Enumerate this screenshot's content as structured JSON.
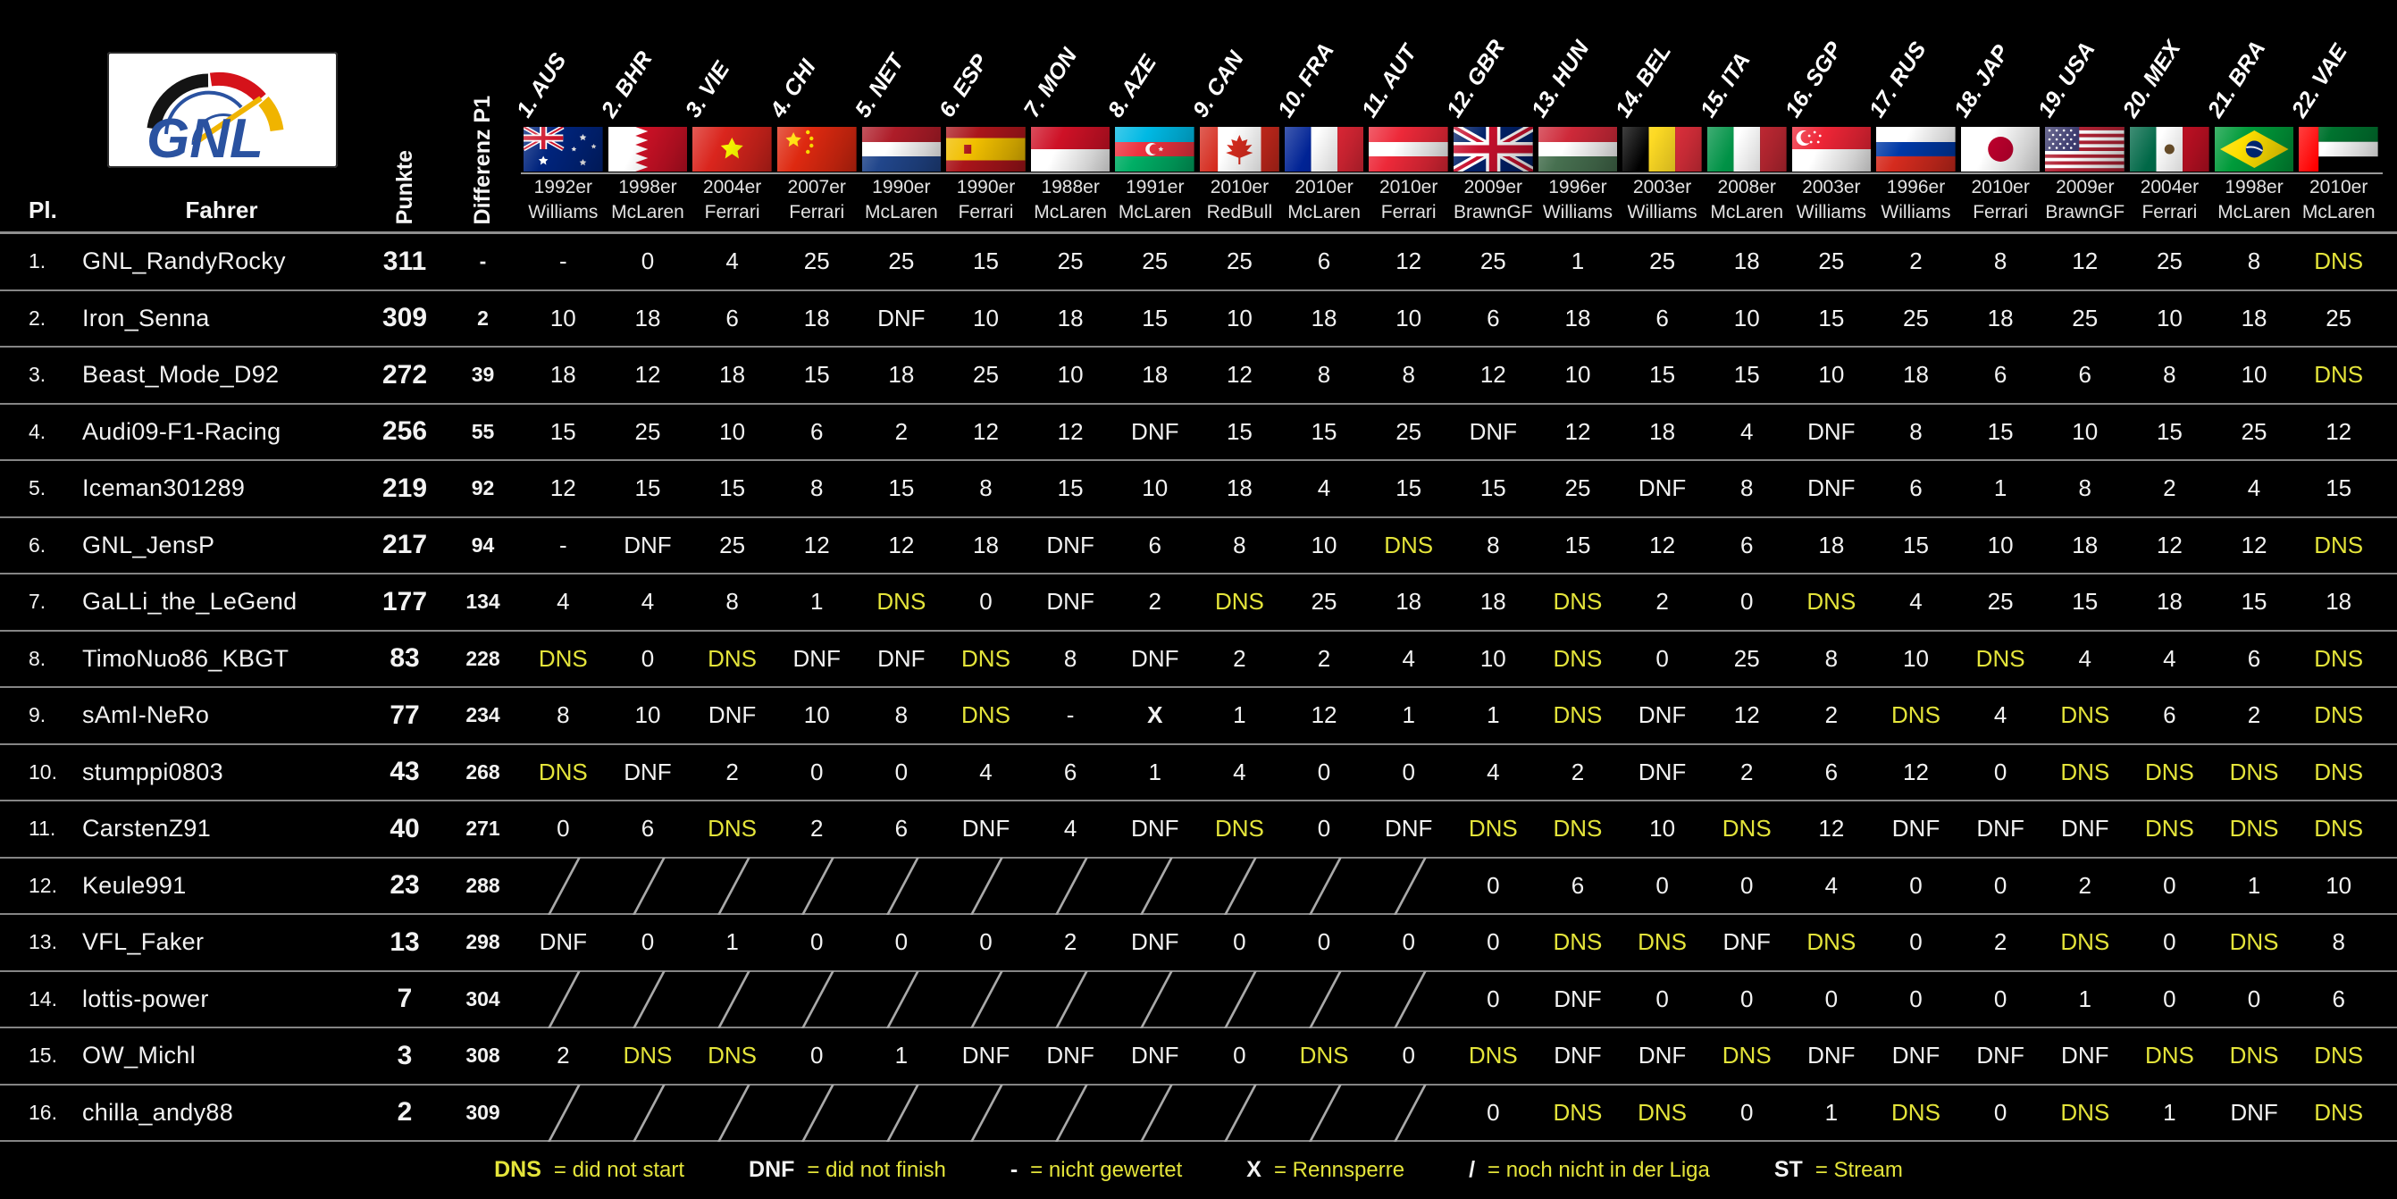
{
  "colors": {
    "background": "#000000",
    "text": "#f2f2f2",
    "accent_yellow": "#e4e43a",
    "separator": "#8f8f8f",
    "logo_blue": "#2a52a0"
  },
  "logo": {
    "text": "GNL"
  },
  "header": {
    "col_pl": "Pl.",
    "col_fahrer": "Fahrer",
    "col_punkte": "Punkte",
    "col_differenz": "Differenz P1"
  },
  "races": [
    {
      "label": "1. AUS",
      "flag": "australia",
      "car_year": "1992er",
      "car_team": "Williams"
    },
    {
      "label": "2. BHR",
      "flag": "bahrain",
      "car_year": "1998er",
      "car_team": "McLaren"
    },
    {
      "label": "3. VIE",
      "flag": "vietnam",
      "car_year": "2004er",
      "car_team": "Ferrari"
    },
    {
      "label": "4. CHI",
      "flag": "china",
      "car_year": "2007er",
      "car_team": "Ferrari"
    },
    {
      "label": "5. NET",
      "flag": "netherlands",
      "car_year": "1990er",
      "car_team": "McLaren"
    },
    {
      "label": "6. ESP",
      "flag": "spain",
      "car_year": "1990er",
      "car_team": "Ferrari"
    },
    {
      "label": "7. MON",
      "flag": "monaco",
      "car_year": "1988er",
      "car_team": "McLaren"
    },
    {
      "label": "8. AZE",
      "flag": "azerbaijan",
      "car_year": "1991er",
      "car_team": "McLaren"
    },
    {
      "label": "9. CAN",
      "flag": "canada",
      "car_year": "2010er",
      "car_team": "RedBull"
    },
    {
      "label": "10. FRA",
      "flag": "france",
      "car_year": "2010er",
      "car_team": "McLaren"
    },
    {
      "label": "11. AUT",
      "flag": "austria",
      "car_year": "2010er",
      "car_team": "Ferrari"
    },
    {
      "label": "12. GBR",
      "flag": "uk",
      "car_year": "2009er",
      "car_team": "BrawnGF"
    },
    {
      "label": "13. HUN",
      "flag": "hungary",
      "car_year": "1996er",
      "car_team": "Williams"
    },
    {
      "label": "14. BEL",
      "flag": "belgium",
      "car_year": "2003er",
      "car_team": "Williams"
    },
    {
      "label": "15. ITA",
      "flag": "italy",
      "car_year": "2008er",
      "car_team": "McLaren"
    },
    {
      "label": "16. SGP",
      "flag": "singapore",
      "car_year": "2003er",
      "car_team": "Williams"
    },
    {
      "label": "17. RUS",
      "flag": "russia",
      "car_year": "1996er",
      "car_team": "Williams"
    },
    {
      "label": "18. JAP",
      "flag": "japan",
      "car_year": "2010er",
      "car_team": "Ferrari"
    },
    {
      "label": "19. USA",
      "flag": "usa",
      "car_year": "2009er",
      "car_team": "BrawnGF"
    },
    {
      "label": "20. MEX",
      "flag": "mexico",
      "car_year": "2004er",
      "car_team": "Ferrari"
    },
    {
      "label": "21. BRA",
      "flag": "brazil",
      "car_year": "1998er",
      "car_team": "McLaren"
    },
    {
      "label": "22. VAE",
      "flag": "uae",
      "car_year": "2010er",
      "car_team": "McLaren"
    }
  ],
  "standings": {
    "rows": [
      {
        "pl": "1.",
        "fahrer": "GNL_RandyRocky",
        "punkte": "311",
        "differenz": "-",
        "results": [
          "-",
          "0",
          "4",
          "25",
          "25",
          "15",
          "25",
          "25",
          "25",
          "6",
          "12",
          "25",
          "1",
          "25",
          "18",
          "25",
          "2",
          "8",
          "12",
          "25",
          "8",
          "DNS"
        ]
      },
      {
        "pl": "2.",
        "fahrer": "Iron_Senna",
        "punkte": "309",
        "differenz": "2",
        "results": [
          "10",
          "18",
          "6",
          "18",
          "DNF",
          "10",
          "18",
          "15",
          "10",
          "18",
          "10",
          "6",
          "18",
          "6",
          "10",
          "15",
          "25",
          "18",
          "25",
          "10",
          "18",
          "25"
        ]
      },
      {
        "pl": "3.",
        "fahrer": "Beast_Mode_D92",
        "punkte": "272",
        "differenz": "39",
        "results": [
          "18",
          "12",
          "18",
          "15",
          "18",
          "25",
          "10",
          "18",
          "12",
          "8",
          "8",
          "12",
          "10",
          "15",
          "15",
          "10",
          "18",
          "6",
          "6",
          "8",
          "10",
          "DNS"
        ]
      },
      {
        "pl": "4.",
        "fahrer": "Audi09-F1-Racing",
        "punkte": "256",
        "differenz": "55",
        "results": [
          "15",
          "25",
          "10",
          "6",
          "2",
          "12",
          "12",
          "DNF",
          "15",
          "15",
          "25",
          "DNF",
          "12",
          "18",
          "4",
          "DNF",
          "8",
          "15",
          "10",
          "15",
          "25",
          "12"
        ]
      },
      {
        "pl": "5.",
        "fahrer": "Iceman301289",
        "punkte": "219",
        "differenz": "92",
        "results": [
          "12",
          "15",
          "15",
          "8",
          "15",
          "8",
          "15",
          "10",
          "18",
          "4",
          "15",
          "15",
          "25",
          "DNF",
          "8",
          "DNF",
          "6",
          "1",
          "8",
          "2",
          "4",
          "15"
        ]
      },
      {
        "pl": "6.",
        "fahrer": "GNL_JensP",
        "punkte": "217",
        "differenz": "94",
        "results": [
          "-",
          "DNF",
          "25",
          "12",
          "12",
          "18",
          "DNF",
          "6",
          "8",
          "10",
          "DNS",
          "8",
          "15",
          "12",
          "6",
          "18",
          "15",
          "10",
          "18",
          "12",
          "12",
          "DNS"
        ]
      },
      {
        "pl": "7.",
        "fahrer": "GaLLi_the_LeGend",
        "punkte": "177",
        "differenz": "134",
        "results": [
          "4",
          "4",
          "8",
          "1",
          "DNS",
          "0",
          "DNF",
          "2",
          "DNS",
          "25",
          "18",
          "18",
          "DNS",
          "2",
          "0",
          "DNS",
          "4",
          "25",
          "15",
          "18",
          "15",
          "18"
        ]
      },
      {
        "pl": "8.",
        "fahrer": "TimoNuo86_KBGT",
        "punkte": "83",
        "differenz": "228",
        "results": [
          "DNS",
          "0",
          "DNS",
          "DNF",
          "DNF",
          "DNS",
          "8",
          "DNF",
          "2",
          "2",
          "4",
          "10",
          "DNS",
          "0",
          "25",
          "8",
          "10",
          "DNS",
          "4",
          "4",
          "6",
          "DNS"
        ]
      },
      {
        "pl": "9.",
        "fahrer": "sAmI-NeRo",
        "punkte": "77",
        "differenz": "234",
        "results": [
          "8",
          "10",
          "DNF",
          "10",
          "8",
          "DNS",
          "-",
          "X",
          "1",
          "12",
          "1",
          "1",
          "DNS",
          "DNF",
          "12",
          "2",
          "DNS",
          "4",
          "DNS",
          "6",
          "2",
          "DNS"
        ]
      },
      {
        "pl": "10.",
        "fahrer": "stumppi0803",
        "punkte": "43",
        "differenz": "268",
        "results": [
          "DNS",
          "DNF",
          "2",
          "0",
          "0",
          "4",
          "6",
          "1",
          "4",
          "0",
          "0",
          "4",
          "2",
          "DNF",
          "2",
          "6",
          "12",
          "0",
          "DNS",
          "DNS",
          "DNS",
          "DNS"
        ]
      },
      {
        "pl": "11.",
        "fahrer": "CarstenZ91",
        "punkte": "40",
        "differenz": "271",
        "results": [
          "0",
          "6",
          "DNS",
          "2",
          "6",
          "DNF",
          "4",
          "DNF",
          "DNS",
          "0",
          "DNF",
          "DNS",
          "DNS",
          "10",
          "DNS",
          "12",
          "DNF",
          "DNF",
          "DNF",
          "DNS",
          "DNS",
          "DNS"
        ]
      },
      {
        "pl": "12.",
        "fahrer": "Keule991",
        "punkte": "23",
        "differenz": "288",
        "results": [
          "/",
          "/",
          "/",
          "/",
          "/",
          "/",
          "/",
          "/",
          "/",
          "/",
          "/",
          "0",
          "6",
          "0",
          "0",
          "4",
          "0",
          "0",
          "2",
          "0",
          "1",
          "10"
        ]
      },
      {
        "pl": "13.",
        "fahrer": "VFL_Faker",
        "punkte": "13",
        "differenz": "298",
        "results": [
          "DNF",
          "0",
          "1",
          "0",
          "0",
          "0",
          "2",
          "DNF",
          "0",
          "0",
          "0",
          "0",
          "DNS",
          "DNS",
          "DNF",
          "DNS",
          "0",
          "2",
          "DNS",
          "0",
          "DNS",
          "8"
        ]
      },
      {
        "pl": "14.",
        "fahrer": "lottis-power",
        "punkte": "7",
        "differenz": "304",
        "results": [
          "/",
          "/",
          "/",
          "/",
          "/",
          "/",
          "/",
          "/",
          "/",
          "/",
          "/",
          "0",
          "DNF",
          "0",
          "0",
          "0",
          "0",
          "0",
          "1",
          "0",
          "0",
          "6"
        ]
      },
      {
        "pl": "15.",
        "fahrer": "OW_Michl",
        "punkte": "3",
        "differenz": "308",
        "results": [
          "2",
          "DNS",
          "DNS",
          "0",
          "1",
          "DNF",
          "DNF",
          "DNF",
          "0",
          "DNS",
          "0",
          "DNS",
          "DNF",
          "DNF",
          "DNS",
          "DNF",
          "DNF",
          "DNF",
          "DNF",
          "DNS",
          "DNS",
          "DNS"
        ]
      },
      {
        "pl": "16.",
        "fahrer": "chilla_andy88",
        "punkte": "2",
        "differenz": "309",
        "results": [
          "/",
          "/",
          "/",
          "/",
          "/",
          "/",
          "/",
          "/",
          "/",
          "/",
          "/",
          "0",
          "DNS",
          "DNS",
          "0",
          "1",
          "DNS",
          "0",
          "DNS",
          "1",
          "DNF",
          "DNS"
        ]
      }
    ]
  },
  "legend": [
    {
      "symbol": "DNS",
      "symbol_color": "yellow",
      "text": "= did not start"
    },
    {
      "symbol": "DNF",
      "symbol_color": "white",
      "text": "= did not finish"
    },
    {
      "symbol": "-",
      "symbol_color": "white",
      "text": "= nicht gewertet"
    },
    {
      "symbol": "X",
      "symbol_color": "white",
      "text": "= Rennsperre"
    },
    {
      "symbol": "/",
      "symbol_color": "white",
      "text": "= noch nicht in der Liga"
    },
    {
      "symbol": "ST",
      "symbol_color": "white",
      "text": "= Stream"
    }
  ]
}
